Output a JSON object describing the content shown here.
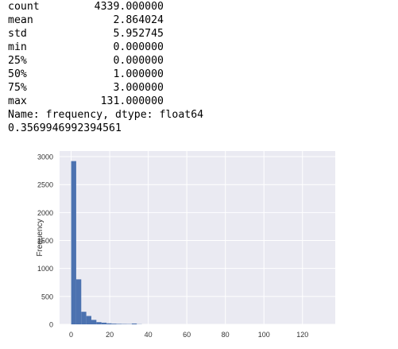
{
  "output": {
    "describe_rows": [
      {
        "label": "count",
        "value": "4339.000000"
      },
      {
        "label": "mean",
        "value": "2.864024"
      },
      {
        "label": "std",
        "value": "5.952745"
      },
      {
        "label": "min",
        "value": "0.000000"
      },
      {
        "label": "25%",
        "value": "0.000000"
      },
      {
        "label": "50%",
        "value": "1.000000"
      },
      {
        "label": "75%",
        "value": "3.000000"
      },
      {
        "label": "max",
        "value": "131.000000"
      }
    ],
    "name_line": "Name: frequency, dtype: float64",
    "extra_value": "0.3569946992394561"
  },
  "chart_data": {
    "type": "bar",
    "title": "",
    "xlabel": "",
    "ylabel": "Frequency",
    "xlim": [
      -6,
      137
    ],
    "ylim": [
      0,
      3100
    ],
    "xticks": [
      "0",
      "20",
      "40",
      "60",
      "80",
      "100",
      "120"
    ],
    "yticks": [
      "0",
      "500",
      "1000",
      "1500",
      "2000",
      "2500",
      "3000"
    ],
    "bin_edges": [
      0,
      2.62,
      5.24,
      7.86,
      10.48,
      13.1,
      15.72,
      18.34,
      20.96,
      23.58,
      26.2,
      28.82,
      31.44,
      34.06,
      36.68
    ],
    "values": [
      2920,
      805,
      225,
      150,
      80,
      40,
      30,
      18,
      12,
      8,
      6,
      5,
      15,
      3
    ],
    "grid": true,
    "colors": {
      "bar": "#4c72b0",
      "background": "#eaeaf2",
      "grid": "#ffffff"
    }
  }
}
